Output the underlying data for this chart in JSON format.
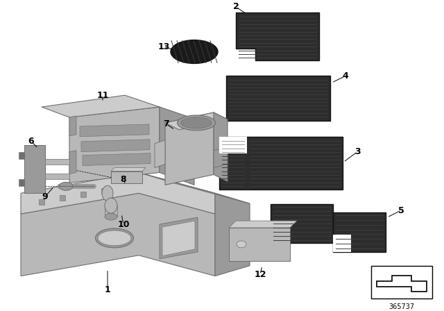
{
  "background_color": "#ffffff",
  "diagram_number": "365737",
  "gray_light": "#b8b8b8",
  "gray_mid": "#9a9a9a",
  "gray_dark": "#6e6e6e",
  "gray_face": "#cccccc",
  "rubber_color": "#2d2d2d",
  "rubber_line": "#3d3d3d",
  "label_fontsize": 9,
  "parts": {
    "1_label": "1",
    "2_label": "2",
    "3_label": "3",
    "4_label": "4",
    "5_label": "5",
    "6_label": "6",
    "7_label": "7",
    "8_label": "8",
    "9_label": "9",
    "10_label": "10",
    "11_label": "11",
    "12_label": "12",
    "13_label": "13"
  }
}
